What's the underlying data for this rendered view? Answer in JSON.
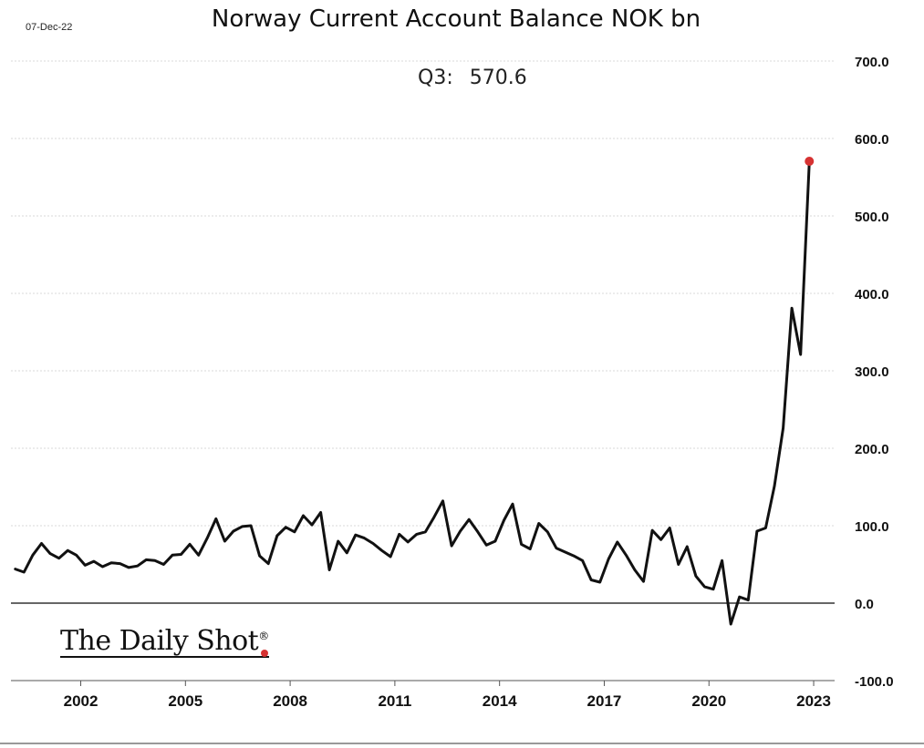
{
  "date_stamp": "07-Dec-22",
  "title": "Norway Current Account Balance NOK bn",
  "annotation": {
    "label": "Q3:",
    "value": "570.6"
  },
  "brand": {
    "name": "The Daily Shot",
    "mark": "®"
  },
  "colors": {
    "line": "#111111",
    "marker": "#d63232",
    "grid": "#d9d9d9",
    "zero": "#333333"
  },
  "chart_data": {
    "type": "line",
    "title": "Norway Current Account Balance NOK bn",
    "xlabel": "",
    "ylabel": "",
    "xlim": [
      2000.0,
      2023.6
    ],
    "ylim": [
      -100,
      700
    ],
    "yticks": [
      -100,
      0,
      100,
      200,
      300,
      400,
      500,
      600,
      700
    ],
    "ytick_labels": [
      "-100.0",
      "0.0",
      "100.0",
      "200.0",
      "300.0",
      "400.0",
      "500.0",
      "600.0",
      "700.0"
    ],
    "xticks": [
      2002,
      2005,
      2008,
      2011,
      2014,
      2017,
      2020,
      2023
    ],
    "xtick_labels": [
      "2002",
      "2005",
      "2008",
      "2011",
      "2014",
      "2017",
      "2020",
      "2023"
    ],
    "grid": "horizontal",
    "highlight_last_point": true,
    "series": [
      {
        "frequency": "quarterly",
        "start": "2000Q1",
        "values": [
          44,
          40,
          62,
          77,
          64,
          58,
          68,
          62,
          49,
          54,
          47,
          52,
          51,
          46,
          48,
          56,
          55,
          50,
          62,
          63,
          76,
          62,
          84,
          109,
          80,
          93,
          99,
          100,
          61,
          51,
          87,
          98,
          92,
          113,
          101,
          117,
          43,
          80,
          65,
          88,
          84,
          77,
          68,
          60,
          89,
          79,
          89,
          92,
          111,
          132,
          74,
          93,
          108,
          92,
          75,
          80,
          107,
          128,
          76,
          70,
          103,
          92,
          71,
          66,
          61,
          55,
          30,
          27,
          57,
          79,
          62,
          43,
          28,
          94,
          82,
          97,
          50,
          73,
          35,
          21,
          18,
          55,
          -27,
          8,
          4,
          93,
          97,
          151,
          226,
          381,
          321,
          570.6
        ]
      }
    ]
  }
}
